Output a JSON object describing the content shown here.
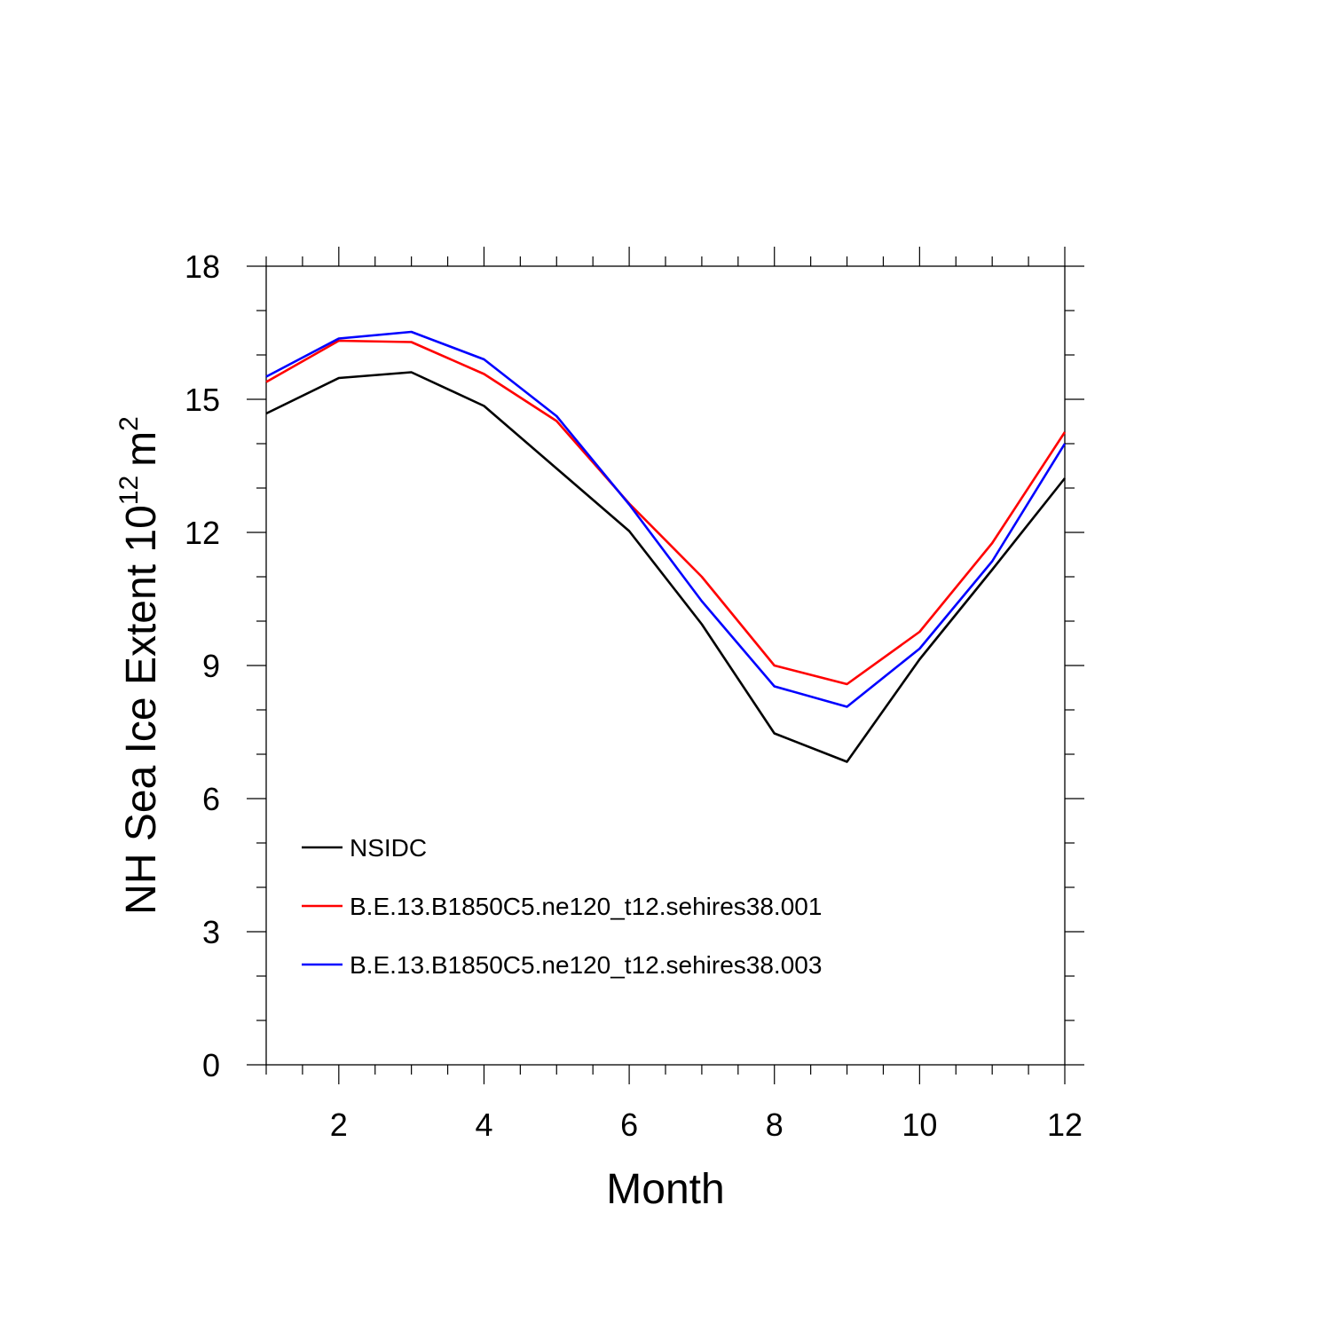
{
  "chart_data": {
    "type": "line",
    "title": "",
    "xlabel": "Month",
    "ylabel": "NH Sea Ice Extent 10",
    "ylabel_superscript": "12",
    "ylabel_unit": "m",
    "ylabel_unit_superscript": "2",
    "xlim": [
      1,
      12
    ],
    "ylim": [
      0,
      18
    ],
    "x_major_ticks": [
      2,
      4,
      6,
      8,
      10,
      12
    ],
    "x_tick_labels": [
      "2",
      "4",
      "6",
      "8",
      "10",
      "12"
    ],
    "y_major_ticks": [
      0,
      3,
      6,
      9,
      12,
      15,
      18
    ],
    "y_tick_labels": [
      "0",
      "3",
      "6",
      "9",
      "12",
      "15",
      "18"
    ],
    "x_minor_step": 0.5,
    "y_minor_step": 1,
    "grid": false,
    "legend_position": "lower-left",
    "x": [
      1,
      2,
      3,
      4,
      5,
      6,
      7,
      8,
      9,
      10,
      11,
      12
    ],
    "series": [
      {
        "name": "NSIDC",
        "color": "#000000",
        "values": [
          14.68,
          15.48,
          15.61,
          14.85,
          13.44,
          12.03,
          9.93,
          7.47,
          6.83,
          9.14,
          11.16,
          13.22
        ]
      },
      {
        "name": "B.E.13.B1850C5.ne120_t12.sehires38.001",
        "color": "#ff0000",
        "values": [
          15.39,
          16.32,
          16.29,
          15.57,
          14.51,
          12.65,
          11.0,
          9.0,
          8.58,
          9.76,
          11.76,
          14.26
        ]
      },
      {
        "name": "B.E.13.B1850C5.ne120_t12.sehires38.003",
        "color": "#0000ff",
        "values": [
          15.51,
          16.37,
          16.52,
          15.9,
          14.62,
          12.63,
          10.45,
          8.53,
          8.07,
          9.38,
          11.35,
          14.0
        ]
      }
    ]
  }
}
